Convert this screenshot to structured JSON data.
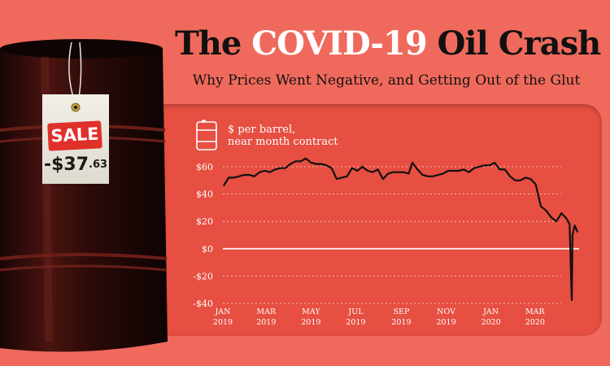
{
  "header": {
    "title_pre": "The ",
    "title_highlight": "COVID-19",
    "title_post": " Oil Crash",
    "subtitle": "Why Prices Went Negative, and Getting Out of the Glut"
  },
  "tag": {
    "sale": "SALE",
    "price_main": "-$37",
    "price_cents": ".63"
  },
  "unit": {
    "line1": "$ per barrel,",
    "line2": "near month contract",
    "icon": "oil-barrel-icon"
  },
  "colors": {
    "background": "#ef6a5c",
    "panel": "#e64f41",
    "line": "#111111",
    "highlight": "#ffffff"
  },
  "chart_data": {
    "type": "line",
    "title": "The COVID-19 Oil Crash",
    "subtitle": "Why Prices Went Negative, and Getting Out of the Glut",
    "ylabel": "$ per barrel, near month contract",
    "xlabel": "",
    "ylim": [
      -40,
      60
    ],
    "xlim": [
      "2019-01-01",
      "2020-04-30"
    ],
    "grid": true,
    "y_ticks": [
      {
        "value": 60,
        "label": "$60"
      },
      {
        "value": 40,
        "label": "$40"
      },
      {
        "value": 20,
        "label": "$20"
      },
      {
        "value": 0,
        "label": "$0"
      },
      {
        "value": -20,
        "label": "-$20"
      },
      {
        "value": -40,
        "label": "-$40"
      }
    ],
    "x_ticks": [
      {
        "date": "2019-01-01",
        "month": "JAN",
        "year": "2019"
      },
      {
        "date": "2019-03-01",
        "month": "MAR",
        "year": "2019"
      },
      {
        "date": "2019-05-01",
        "month": "MAY",
        "year": "2019"
      },
      {
        "date": "2019-07-01",
        "month": "JUL",
        "year": "2019"
      },
      {
        "date": "2019-09-01",
        "month": "SEP",
        "year": "2019"
      },
      {
        "date": "2019-11-01",
        "month": "NOV",
        "year": "2019"
      },
      {
        "date": "2020-01-01",
        "month": "JAN",
        "year": "2020"
      },
      {
        "date": "2020-03-01",
        "month": "MAR",
        "year": "2020"
      }
    ],
    "series": [
      {
        "name": "",
        "points": [
          [
            "2019-01-02",
            46
          ],
          [
            "2019-01-09",
            52
          ],
          [
            "2019-01-16",
            52
          ],
          [
            "2019-01-23",
            53
          ],
          [
            "2019-01-30",
            54
          ],
          [
            "2019-02-06",
            54
          ],
          [
            "2019-02-13",
            53
          ],
          [
            "2019-02-20",
            56
          ],
          [
            "2019-02-27",
            57
          ],
          [
            "2019-03-06",
            56
          ],
          [
            "2019-03-13",
            58
          ],
          [
            "2019-03-20",
            59
          ],
          [
            "2019-03-27",
            59
          ],
          [
            "2019-04-03",
            62
          ],
          [
            "2019-04-10",
            64
          ],
          [
            "2019-04-17",
            64
          ],
          [
            "2019-04-24",
            66
          ],
          [
            "2019-05-01",
            63
          ],
          [
            "2019-05-08",
            62
          ],
          [
            "2019-05-15",
            62
          ],
          [
            "2019-05-22",
            61
          ],
          [
            "2019-05-29",
            59
          ],
          [
            "2019-06-05",
            51
          ],
          [
            "2019-06-12",
            52
          ],
          [
            "2019-06-19",
            53
          ],
          [
            "2019-06-26",
            59
          ],
          [
            "2019-07-03",
            57
          ],
          [
            "2019-07-10",
            60
          ],
          [
            "2019-07-17",
            57
          ],
          [
            "2019-07-24",
            56
          ],
          [
            "2019-07-31",
            58
          ],
          [
            "2019-08-07",
            51
          ],
          [
            "2019-08-14",
            55
          ],
          [
            "2019-08-21",
            56
          ],
          [
            "2019-08-28",
            56
          ],
          [
            "2019-09-04",
            56
          ],
          [
            "2019-09-11",
            55
          ],
          [
            "2019-09-16",
            63
          ],
          [
            "2019-09-23",
            58
          ],
          [
            "2019-09-30",
            54
          ],
          [
            "2019-10-07",
            53
          ],
          [
            "2019-10-14",
            53
          ],
          [
            "2019-10-21",
            54
          ],
          [
            "2019-10-28",
            55
          ],
          [
            "2019-11-04",
            57
          ],
          [
            "2019-11-11",
            57
          ],
          [
            "2019-11-18",
            57
          ],
          [
            "2019-11-25",
            58
          ],
          [
            "2019-12-02",
            56
          ],
          [
            "2019-12-09",
            59
          ],
          [
            "2019-12-16",
            60
          ],
          [
            "2019-12-23",
            61
          ],
          [
            "2019-12-30",
            61
          ],
          [
            "2020-01-06",
            63
          ],
          [
            "2020-01-13",
            58
          ],
          [
            "2020-01-20",
            58
          ],
          [
            "2020-01-27",
            53
          ],
          [
            "2020-02-03",
            50
          ],
          [
            "2020-02-10",
            50
          ],
          [
            "2020-02-17",
            52
          ],
          [
            "2020-02-24",
            51
          ],
          [
            "2020-03-02",
            47
          ],
          [
            "2020-03-09",
            31
          ],
          [
            "2020-03-16",
            28
          ],
          [
            "2020-03-23",
            23
          ],
          [
            "2020-03-30",
            20
          ],
          [
            "2020-04-06",
            26
          ],
          [
            "2020-04-13",
            22
          ],
          [
            "2020-04-17",
            18
          ],
          [
            "2020-04-20",
            -37.63
          ],
          [
            "2020-04-21",
            10
          ],
          [
            "2020-04-24",
            17
          ],
          [
            "2020-04-28",
            12
          ]
        ]
      }
    ]
  }
}
